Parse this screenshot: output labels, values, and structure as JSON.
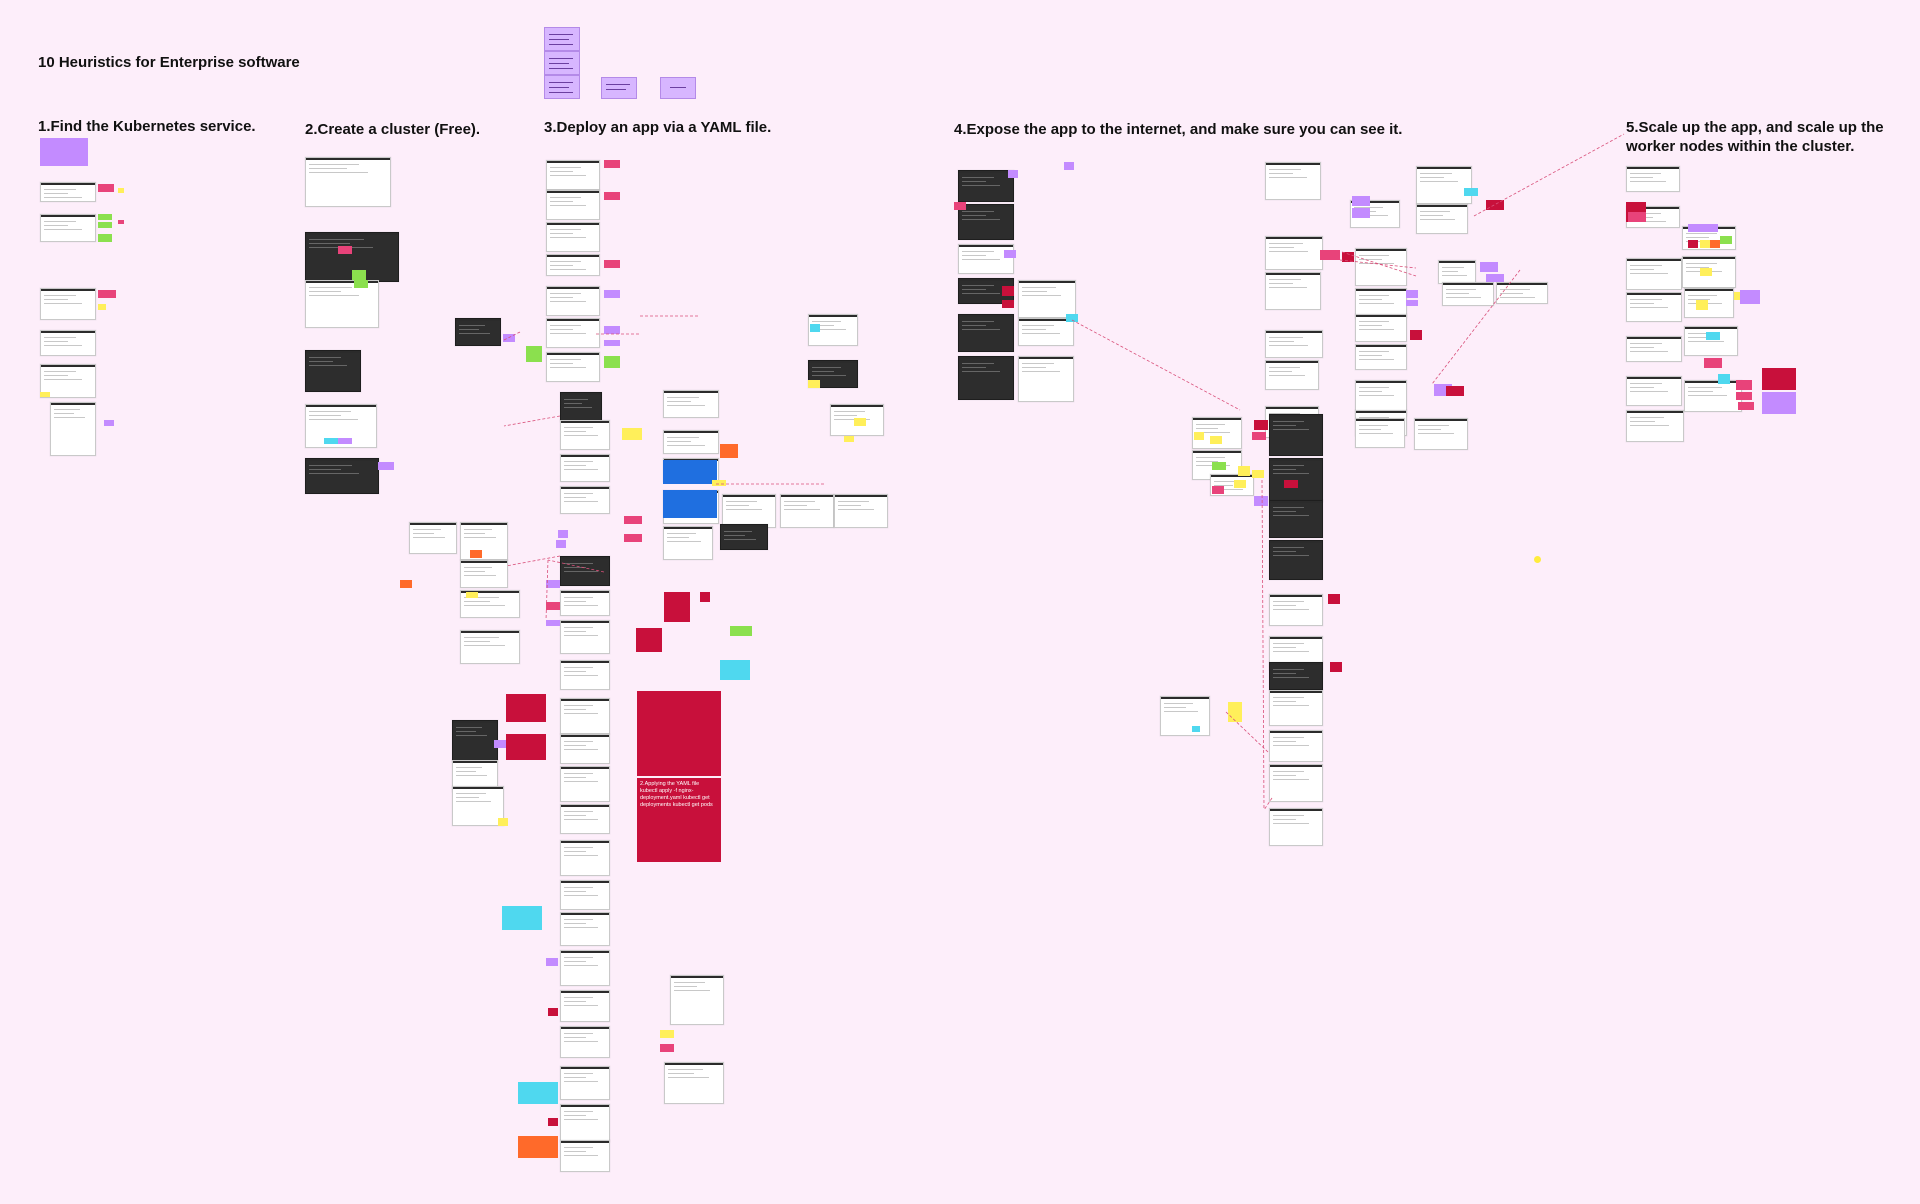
{
  "board": {
    "title": "10 Heuristics for Enterprise software",
    "sections": [
      {
        "id": "s1",
        "heading": "1.Find the Kubernetes service."
      },
      {
        "id": "s2",
        "heading": "2.Create a cluster (Free)."
      },
      {
        "id": "s3",
        "heading": "3.Deploy an app via a YAML file."
      },
      {
        "id": "s4",
        "heading": "4.Expose the app to the internet, and make sure you can see it."
      },
      {
        "id": "s5",
        "heading": "5.Scale up the app, and scale up the worker nodes within the cluster."
      }
    ],
    "notes": {
      "yaml_note": "2.Applying the YAML file kubectl apply -f nginx-deployment.yaml kubectl get deployments kubectl get pods"
    }
  },
  "colors": {
    "background": "#fdeefa",
    "sticky_pink": "#e8437a",
    "sticky_crimson": "#c8103b",
    "sticky_purple": "#c38bff",
    "sticky_green": "#8be04e",
    "sticky_yellow": "#ffef5a",
    "sticky_cyan": "#4fd8ef",
    "sticky_orange": "#ff6a2a",
    "connector": "#d9507a"
  }
}
